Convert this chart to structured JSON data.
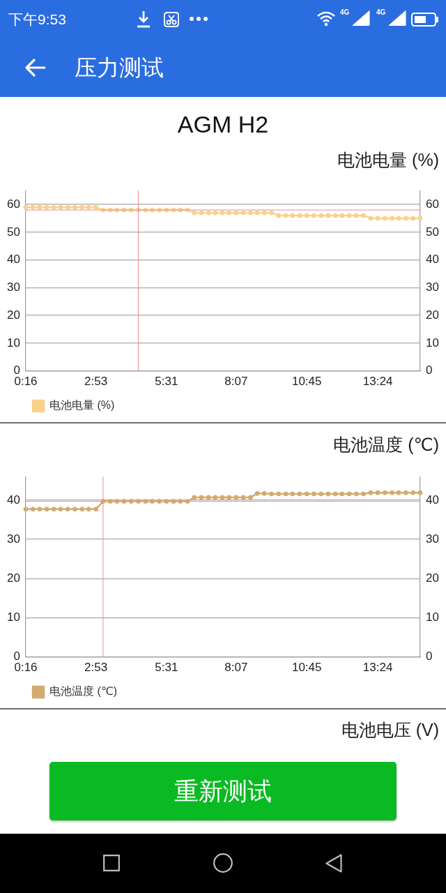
{
  "chart_data": [
    {
      "type": "line",
      "title": "电池电量 (%)",
      "annotations": [
        "下午9:53",
        "4G",
        "4G",
        "压力测试",
        "AGM H2"
      ],
      "x": [
        16,
        32,
        47,
        63,
        79,
        94,
        110,
        126,
        142,
        157,
        173,
        189,
        205,
        220,
        236,
        252,
        268,
        284,
        299,
        315,
        331,
        347,
        362,
        378,
        393,
        409,
        425,
        440,
        456,
        471,
        487,
        503,
        519,
        534,
        550,
        566,
        582,
        598,
        613,
        629,
        645,
        661,
        677,
        693,
        709,
        724,
        740,
        756,
        772,
        788,
        804,
        820,
        836,
        851,
        867,
        883,
        899
      ],
      "series": [
        {
          "name": "电池电量 (%)",
          "color": "#f9d18c",
          "values": [
            59,
            59,
            59,
            59,
            59,
            59,
            59,
            59,
            59,
            59,
            59,
            58,
            58,
            58,
            58,
            58,
            58,
            58,
            58,
            58,
            58,
            58,
            58,
            58,
            57,
            57,
            57,
            57,
            57,
            57,
            57,
            57,
            57,
            57,
            57,
            57,
            56,
            56,
            56,
            56,
            56,
            56,
            56,
            56,
            56,
            56,
            56,
            56,
            56,
            55,
            55,
            55,
            55,
            55,
            55,
            55,
            55
          ]
        }
      ],
      "xlim": [
        16,
        899
      ],
      "xticks": [
        {
          "value": 16,
          "label": "0:16"
        },
        {
          "value": 173,
          "label": "2:53"
        },
        {
          "value": 331,
          "label": "5:31"
        },
        {
          "value": 487,
          "label": "8:07"
        },
        {
          "value": 645,
          "label": "10:45"
        },
        {
          "value": 804,
          "label": "13:24"
        }
      ],
      "ylim": [
        0,
        65
      ],
      "yticks": [
        0,
        10,
        20,
        30,
        40,
        50,
        60
      ],
      "y2lim": [
        0,
        65
      ],
      "y2ticks": [
        0,
        10,
        20,
        30,
        40,
        50,
        60
      ],
      "ref_lines": [
        {
          "axis": "x",
          "value": 268,
          "color": "#f08c8c"
        },
        {
          "axis": "y",
          "value": 58,
          "color": "#f08c8c"
        }
      ],
      "grid": "y",
      "legend": "bottom left",
      "marker": "circle",
      "line_style": "solid"
    },
    {
      "type": "line",
      "title": "电池温度 (℃)",
      "x": [
        16,
        32,
        47,
        63,
        79,
        94,
        110,
        126,
        142,
        157,
        173,
        189,
        205,
        220,
        236,
        252,
        268,
        284,
        299,
        315,
        331,
        347,
        362,
        378,
        393,
        409,
        425,
        440,
        456,
        471,
        487,
        503,
        519,
        534,
        550,
        566,
        582,
        598,
        613,
        629,
        645,
        661,
        677,
        693,
        709,
        724,
        740,
        756,
        772,
        788,
        804,
        820,
        836,
        851,
        867,
        883,
        899
      ],
      "series": [
        {
          "name": "电池温度 (℃)",
          "color": "#d4aa6e",
          "values": [
            37.7,
            37.7,
            37.7,
            37.7,
            37.7,
            37.7,
            37.7,
            37.7,
            37.7,
            37.7,
            37.7,
            39.7,
            39.7,
            39.7,
            39.7,
            39.7,
            39.7,
            39.7,
            39.7,
            39.7,
            39.7,
            39.7,
            39.7,
            39.7,
            40.7,
            40.7,
            40.7,
            40.7,
            40.7,
            40.7,
            40.7,
            40.7,
            40.7,
            41.7,
            41.7,
            41.6,
            41.6,
            41.6,
            41.6,
            41.6,
            41.6,
            41.6,
            41.6,
            41.6,
            41.6,
            41.6,
            41.6,
            41.6,
            41.6,
            41.9,
            41.9,
            41.9,
            41.9,
            41.9,
            41.9,
            41.9,
            41.9
          ]
        }
      ],
      "xlim": [
        16,
        899
      ],
      "xticks": [
        {
          "value": 16,
          "label": "0:16"
        },
        {
          "value": 173,
          "label": "2:53"
        },
        {
          "value": 331,
          "label": "5:31"
        },
        {
          "value": 487,
          "label": "8:07"
        },
        {
          "value": 645,
          "label": "10:45"
        },
        {
          "value": 804,
          "label": "13:24"
        }
      ],
      "ylim": [
        0,
        46
      ],
      "yticks": [
        0,
        10,
        20,
        30,
        40
      ],
      "y2lim": [
        0,
        46
      ],
      "y2ticks": [
        0,
        10,
        20,
        30,
        40
      ],
      "ref_lines": [
        {
          "axis": "x",
          "value": 189,
          "color": "#f08c8c"
        },
        {
          "axis": "y",
          "value": 39.7,
          "color": "#f08c8c"
        }
      ],
      "grid": "y",
      "legend": "bottom left",
      "marker": "circle",
      "line_style": "solid"
    },
    {
      "type": "other",
      "title": "电池电压 (V)",
      "annotations": [
        "重新测试"
      ]
    }
  ]
}
